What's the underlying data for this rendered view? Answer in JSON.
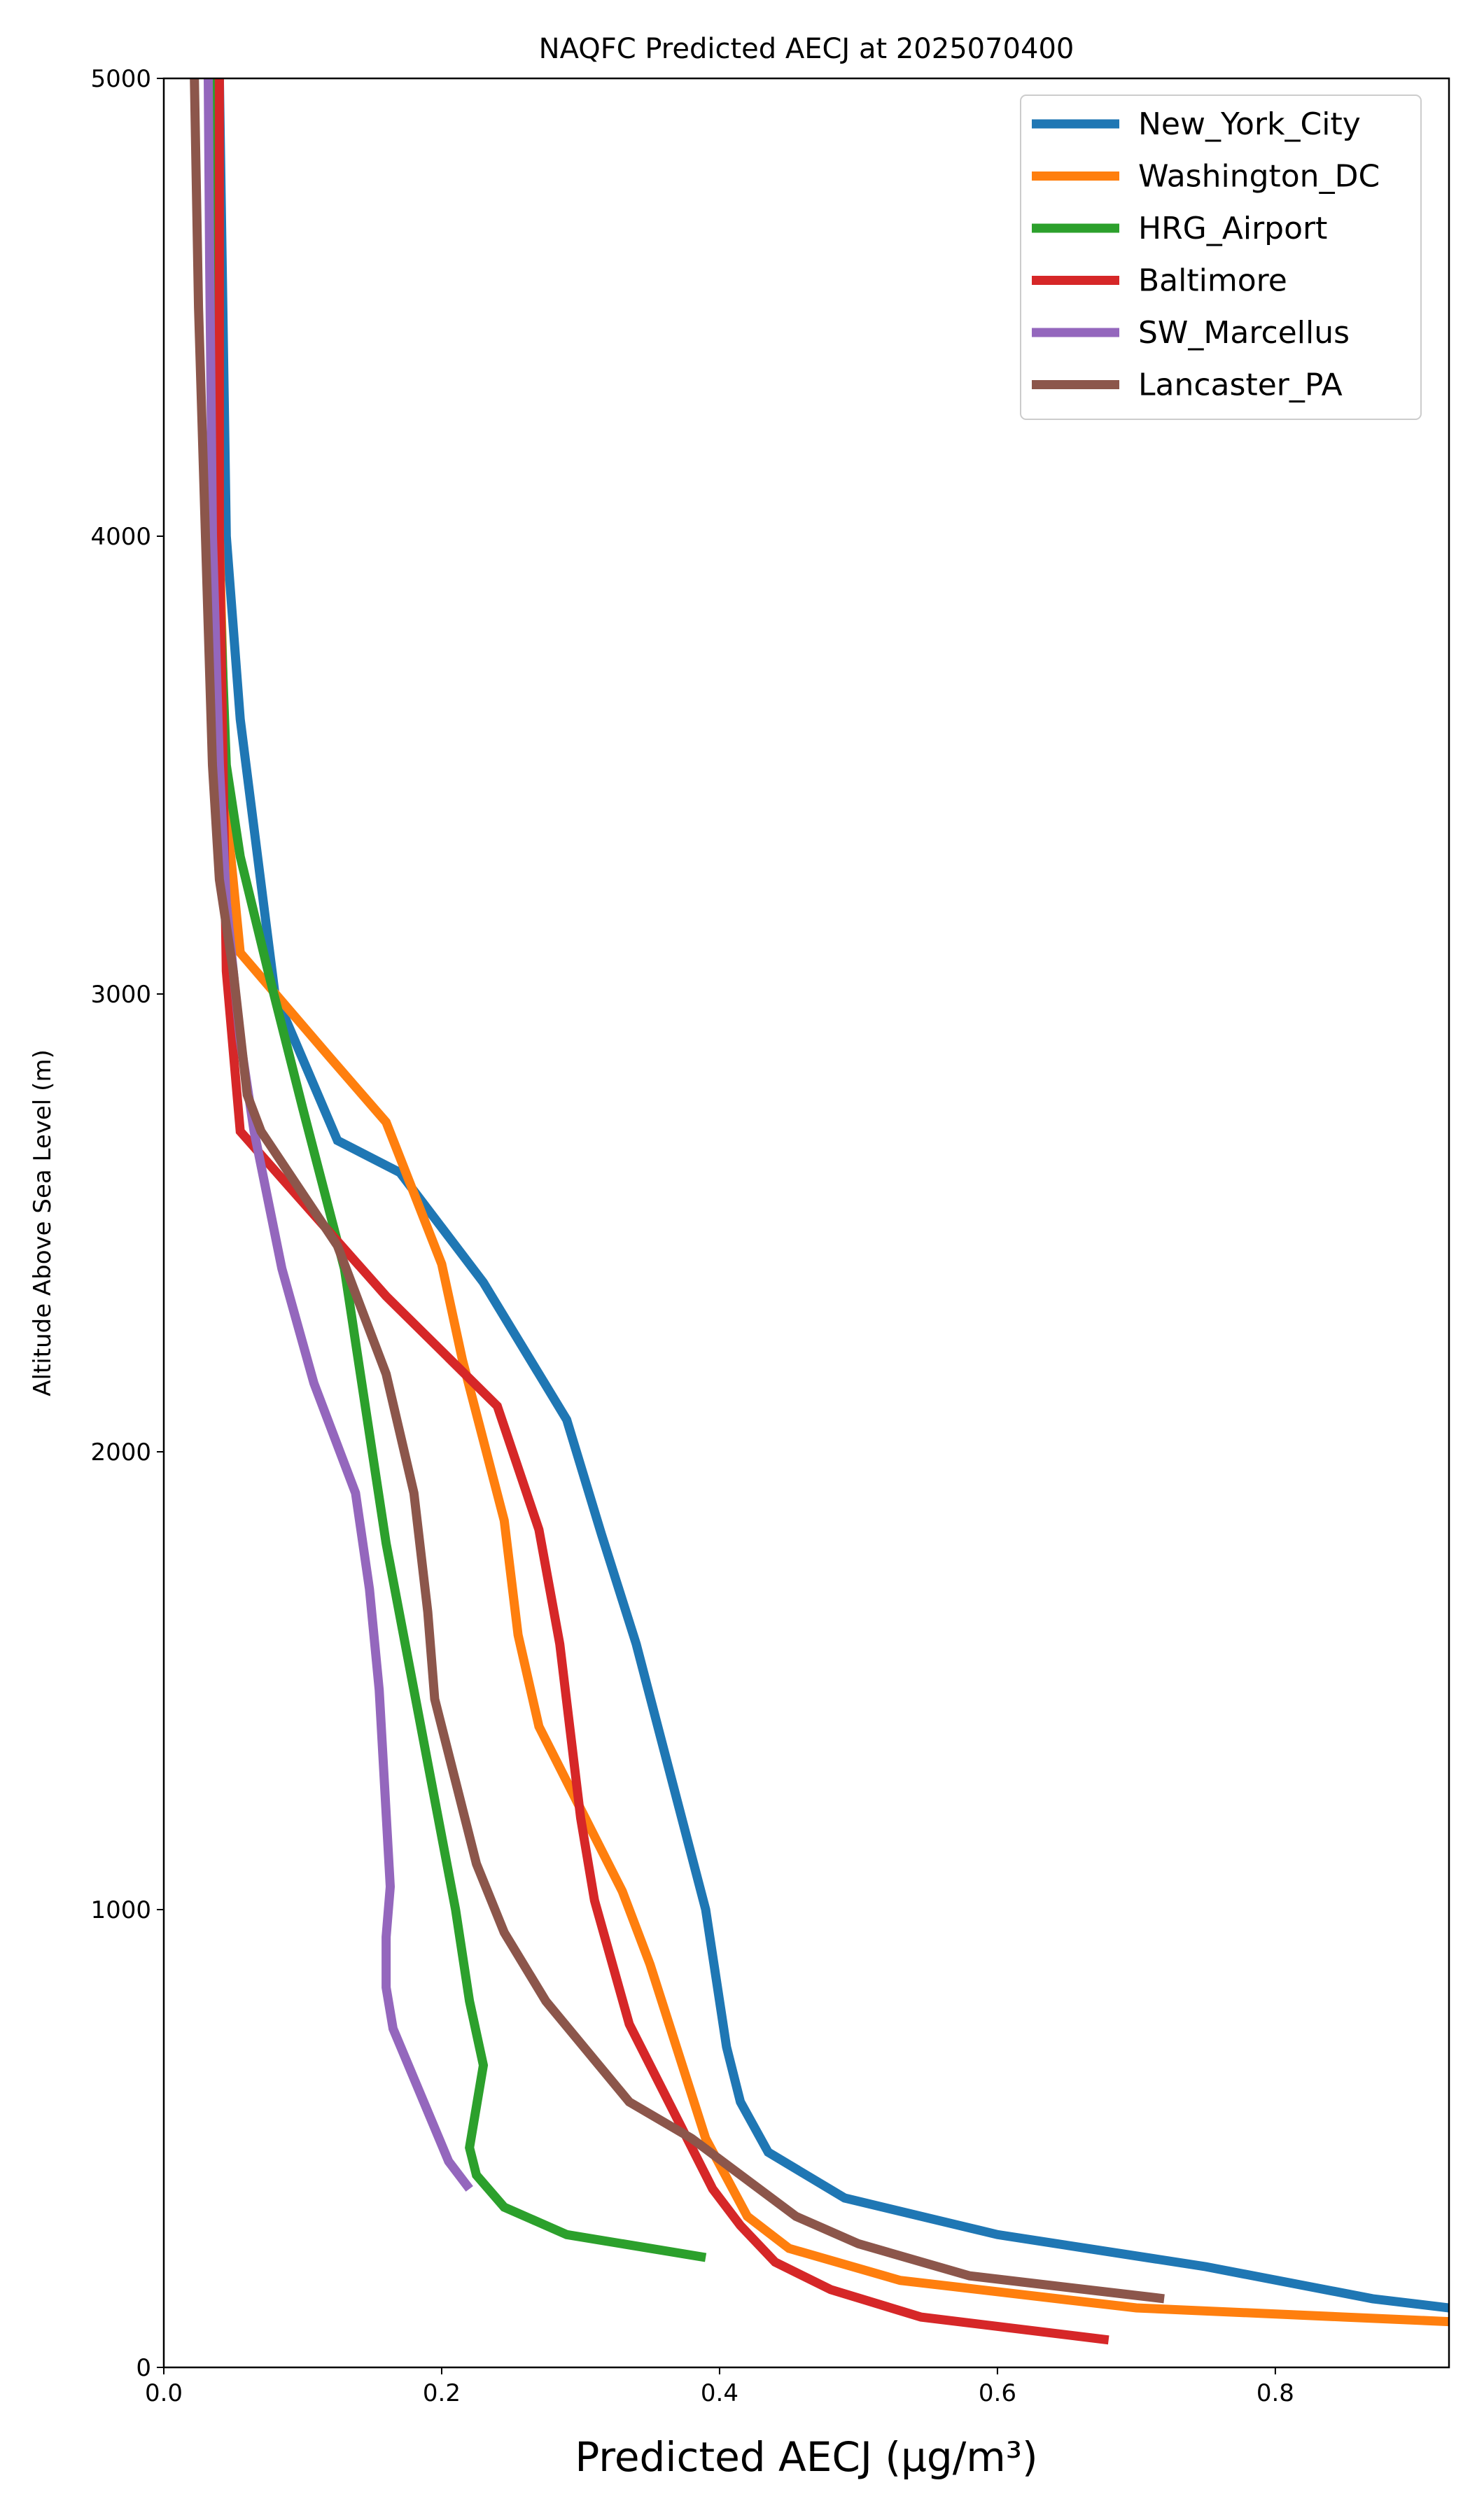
{
  "chart_data": {
    "type": "line",
    "title": "NAQFC Predicted AECJ at 2025070400",
    "xlabel": "Predicted AECJ (μg/m³)",
    "ylabel": "Altitude Above Sea Level (m)",
    "xlim": [
      0,
      0.925
    ],
    "ylim": [
      0,
      5000
    ],
    "x_ticks": [
      "0.0",
      "0.2",
      "0.4",
      "0.6",
      "0.8"
    ],
    "y_ticks": [
      "0",
      "1000",
      "2000",
      "3000",
      "4000",
      "5000"
    ],
    "grid": false,
    "legend_position": "top-right",
    "series": [
      {
        "name": "New_York_City",
        "color": "#1f77b4",
        "points": [
          [
            0.925,
            130
          ],
          [
            0.87,
            150
          ],
          [
            0.75,
            220
          ],
          [
            0.6,
            290
          ],
          [
            0.49,
            370
          ],
          [
            0.435,
            470
          ],
          [
            0.415,
            580
          ],
          [
            0.405,
            700
          ],
          [
            0.39,
            1000
          ],
          [
            0.34,
            1580
          ],
          [
            0.315,
            1820
          ],
          [
            0.29,
            2070
          ],
          [
            0.23,
            2370
          ],
          [
            0.17,
            2610
          ],
          [
            0.125,
            2680
          ],
          [
            0.08,
            3000
          ],
          [
            0.055,
            3600
          ],
          [
            0.045,
            4000
          ],
          [
            0.04,
            5000
          ]
        ]
      },
      {
        "name": "Washington_DC",
        "color": "#ff7f0e",
        "points": [
          [
            0.925,
            100
          ],
          [
            0.85,
            110
          ],
          [
            0.7,
            130
          ],
          [
            0.53,
            190
          ],
          [
            0.45,
            260
          ],
          [
            0.42,
            330
          ],
          [
            0.39,
            500
          ],
          [
            0.35,
            880
          ],
          [
            0.33,
            1040
          ],
          [
            0.27,
            1400
          ],
          [
            0.255,
            1600
          ],
          [
            0.245,
            1850
          ],
          [
            0.215,
            2200
          ],
          [
            0.2,
            2410
          ],
          [
            0.16,
            2720
          ],
          [
            0.12,
            2860
          ],
          [
            0.055,
            3090
          ],
          [
            0.045,
            3400
          ],
          [
            0.04,
            4000
          ],
          [
            0.035,
            5000
          ]
        ]
      },
      {
        "name": "HRG_Airport",
        "color": "#2ca02c",
        "points": [
          [
            0.39,
            240
          ],
          [
            0.29,
            290
          ],
          [
            0.245,
            350
          ],
          [
            0.225,
            420
          ],
          [
            0.22,
            480
          ],
          [
            0.23,
            660
          ],
          [
            0.22,
            800
          ],
          [
            0.21,
            1000
          ],
          [
            0.16,
            1800
          ],
          [
            0.15,
            2000
          ],
          [
            0.13,
            2400
          ],
          [
            0.1,
            2750
          ],
          [
            0.075,
            3050
          ],
          [
            0.055,
            3300
          ],
          [
            0.045,
            3500
          ],
          [
            0.04,
            3900
          ],
          [
            0.035,
            5000
          ]
        ]
      },
      {
        "name": "Baltimore",
        "color": "#d62728",
        "points": [
          [
            0.68,
            60
          ],
          [
            0.545,
            110
          ],
          [
            0.48,
            170
          ],
          [
            0.44,
            230
          ],
          [
            0.415,
            310
          ],
          [
            0.395,
            390
          ],
          [
            0.365,
            570
          ],
          [
            0.335,
            750
          ],
          [
            0.31,
            1020
          ],
          [
            0.3,
            1200
          ],
          [
            0.285,
            1580
          ],
          [
            0.27,
            1830
          ],
          [
            0.24,
            2100
          ],
          [
            0.16,
            2340
          ],
          [
            0.09,
            2580
          ],
          [
            0.055,
            2700
          ],
          [
            0.045,
            3050
          ],
          [
            0.04,
            4000
          ],
          [
            0.04,
            5000
          ]
        ]
      },
      {
        "name": "SW_Marcellus",
        "color": "#9467bd",
        "points": [
          [
            0.22,
            390
          ],
          [
            0.205,
            450
          ],
          [
            0.165,
            740
          ],
          [
            0.16,
            830
          ],
          [
            0.16,
            940
          ],
          [
            0.163,
            1050
          ],
          [
            0.155,
            1480
          ],
          [
            0.148,
            1700
          ],
          [
            0.138,
            1910
          ],
          [
            0.108,
            2150
          ],
          [
            0.085,
            2400
          ],
          [
            0.065,
            2700
          ],
          [
            0.055,
            2900
          ],
          [
            0.045,
            3200
          ],
          [
            0.04,
            3500
          ],
          [
            0.035,
            4000
          ],
          [
            0.033,
            4600
          ],
          [
            0.032,
            5000
          ]
        ]
      },
      {
        "name": "Lancaster_PA",
        "color": "#8c564b",
        "points": [
          [
            0.72,
            150
          ],
          [
            0.58,
            200
          ],
          [
            0.5,
            270
          ],
          [
            0.455,
            330
          ],
          [
            0.38,
            500
          ],
          [
            0.335,
            580
          ],
          [
            0.275,
            800
          ],
          [
            0.245,
            950
          ],
          [
            0.225,
            1100
          ],
          [
            0.21,
            1280
          ],
          [
            0.195,
            1460
          ],
          [
            0.19,
            1650
          ],
          [
            0.18,
            1910
          ],
          [
            0.16,
            2170
          ],
          [
            0.125,
            2450
          ],
          [
            0.07,
            2700
          ],
          [
            0.06,
            2780
          ],
          [
            0.05,
            3050
          ],
          [
            0.04,
            3250
          ],
          [
            0.035,
            3500
          ],
          [
            0.03,
            4000
          ],
          [
            0.025,
            4500
          ],
          [
            0.022,
            5000
          ]
        ]
      }
    ]
  }
}
